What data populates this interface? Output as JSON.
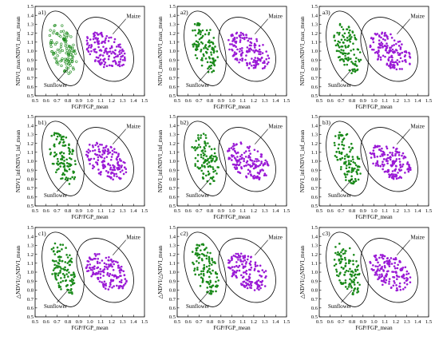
{
  "figure": {
    "panels": [
      {
        "label": "a1)",
        "xlabel": "FGP/FGP_mean",
        "ylabel": "NDVI_max/NDVI_max_mean",
        "maize_label": "Maize",
        "sunflower_label": "Sunflower",
        "sunflower_hollow": true
      },
      {
        "label": "a2)",
        "xlabel": "FGP/FGP_mean",
        "ylabel": "NDVI_max/NDVI_max_mean",
        "maize_label": "Maize",
        "sunflower_label": "Sunflower",
        "sunflower_hollow": false
      },
      {
        "label": "a3)",
        "xlabel": "FGP/FGP_mean",
        "ylabel": "NDVI_max/NDVI_max_mean",
        "maize_label": "Maize",
        "sunflower_label": "Sunflower",
        "sunflower_hollow": false
      },
      {
        "label": "b1)",
        "xlabel": "FGP/FGP_mean",
        "ylabel": "NDVI_inf/NDVI_inf_mean",
        "maize_label": "Maize",
        "sunflower_label": "Sunflower",
        "sunflower_hollow": false
      },
      {
        "label": "b2)",
        "xlabel": "FGP/FGP_mean",
        "ylabel": "NDVI_inf/NDVI_inf_mean",
        "maize_label": "Maize",
        "sunflower_label": "Sunflower",
        "sunflower_hollow": false
      },
      {
        "label": "b3)",
        "xlabel": "FGP/FGP_mean",
        "ylabel": "NDVI_inf/NDVI_inf_mean",
        "maize_label": "Maize",
        "sunflower_label": "Sunflower",
        "sunflower_hollow": false
      },
      {
        "label": "c1)",
        "xlabel": "FGP/FGP_mean",
        "ylabel": "△NDVI/△NDVI_mean",
        "maize_label": "Maize",
        "sunflower_label": "Sunflower",
        "sunflower_hollow": false
      },
      {
        "label": "c2)",
        "xlabel": "FGP/FGP_mean",
        "ylabel": "△NDVI/△NDVI_mean",
        "maize_label": "Maize",
        "sunflower_label": "Sunflower",
        "sunflower_hollow": false
      },
      {
        "label": "c3)",
        "xlabel": "FGP/FGP_mean",
        "ylabel": "△NDVI/△NDVI_mean",
        "maize_label": "Maize",
        "sunflower_label": "Sunflower",
        "sunflower_hollow": false
      }
    ]
  },
  "chart_data": {
    "type": "scatter",
    "panel_count": 9,
    "xlim": [
      0.5,
      1.5
    ],
    "ylim": [
      0.5,
      1.5
    ],
    "x_ticks": [
      0.5,
      0.6,
      0.7,
      0.8,
      0.9,
      1.0,
      1.1,
      1.2,
      1.3,
      1.4,
      1.5
    ],
    "y_ticks": [
      0.5,
      0.6,
      0.7,
      0.8,
      0.9,
      1.0,
      1.1,
      1.2,
      1.3,
      1.4,
      1.5
    ],
    "x_tick_labels": [
      "0.5",
      "0.6",
      "0.7",
      "0.8",
      "0.9",
      "1.0",
      "1.1",
      "1.2",
      "1.3",
      "1.4",
      "1.5"
    ],
    "y_tick_labels": [
      "0.5",
      "0.6",
      "0.7",
      "0.8",
      "0.9",
      "1.0",
      "1.1",
      "1.2",
      "1.3",
      "1.4",
      "1.5"
    ],
    "colors": {
      "sunflower": "#1a8a1a",
      "maize": "#9a1ad6"
    },
    "series": [
      {
        "name": "Sunflower",
        "x_range": [
          0.6,
          0.9
        ],
        "y_center": 1.05
      },
      {
        "name": "Maize",
        "x_range": [
          1.0,
          1.35
        ],
        "y_center": 1.0
      }
    ]
  }
}
